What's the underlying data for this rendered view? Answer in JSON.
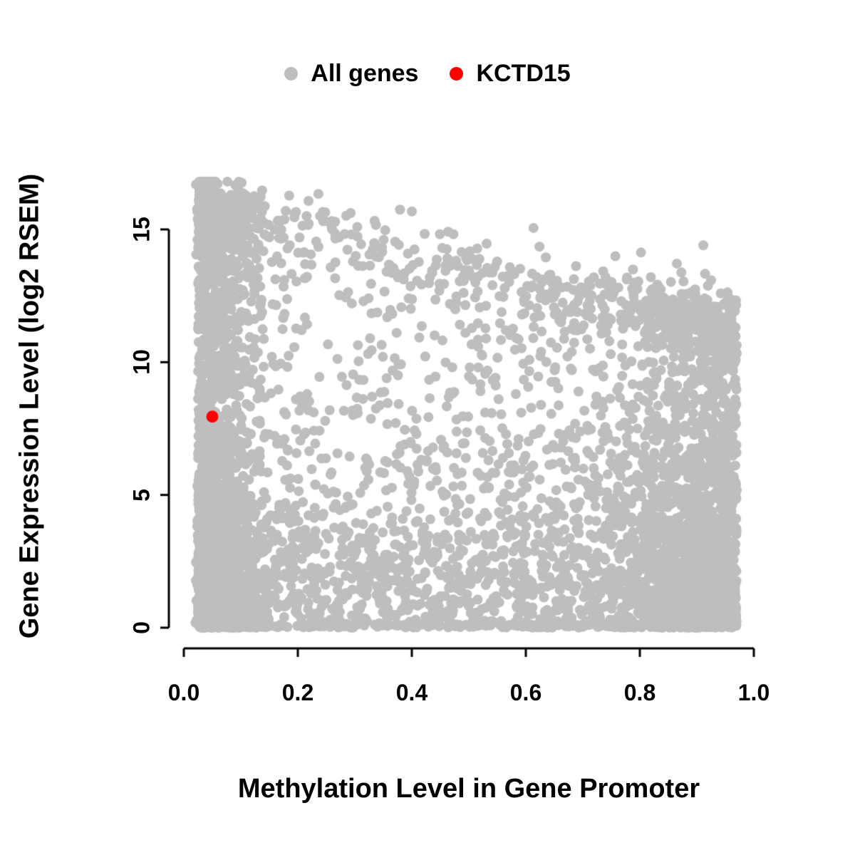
{
  "figure": {
    "background": "#ffffff"
  },
  "chart_data": {
    "type": "scatter",
    "title": "",
    "xlabel": "Methylation Level in Gene Promoter",
    "ylabel": "Gene Expression Level (log2 RSEM)",
    "xlim": [
      0,
      1
    ],
    "ylim": [
      0,
      17
    ],
    "grid": false,
    "legend_position": "top-center",
    "axis_color": "#000000",
    "x_ticks": {
      "values": [
        0,
        0.2,
        0.4,
        0.6,
        0.8,
        1.0
      ],
      "labels": [
        "0.0",
        "0.2",
        "0.4",
        "0.6",
        "0.8",
        "1.0"
      ]
    },
    "y_ticks": {
      "values": [
        0,
        5,
        10,
        15
      ],
      "labels": [
        "0",
        "5",
        "10",
        "15"
      ]
    },
    "series": [
      {
        "name": "All genes",
        "color": "#bebebe",
        "kind": "dense_point_cloud",
        "marker": "filled-circle",
        "n_points": 7000,
        "x_range": [
          0.02,
          0.97
        ],
        "y_range": [
          0,
          16.8
        ],
        "upper_envelope": {
          "intercept": 16.6,
          "slope": -4.8
        },
        "seed": 42,
        "description": "Dense gray cloud: densest at low methylation (x<0.15) spanning full expression range 0-16.5; maximum expression declines as methylation increases (down to ~12 at x~0.95); dense low-expression band across all methylation levels; secondary dense band at high methylation (x>0.85)."
      },
      {
        "name": "KCTD15",
        "color": "#ff0000",
        "kind": "highlight_point",
        "marker": "filled-circle",
        "points": [
          [
            0.05,
            7.95
          ]
        ]
      }
    ]
  }
}
